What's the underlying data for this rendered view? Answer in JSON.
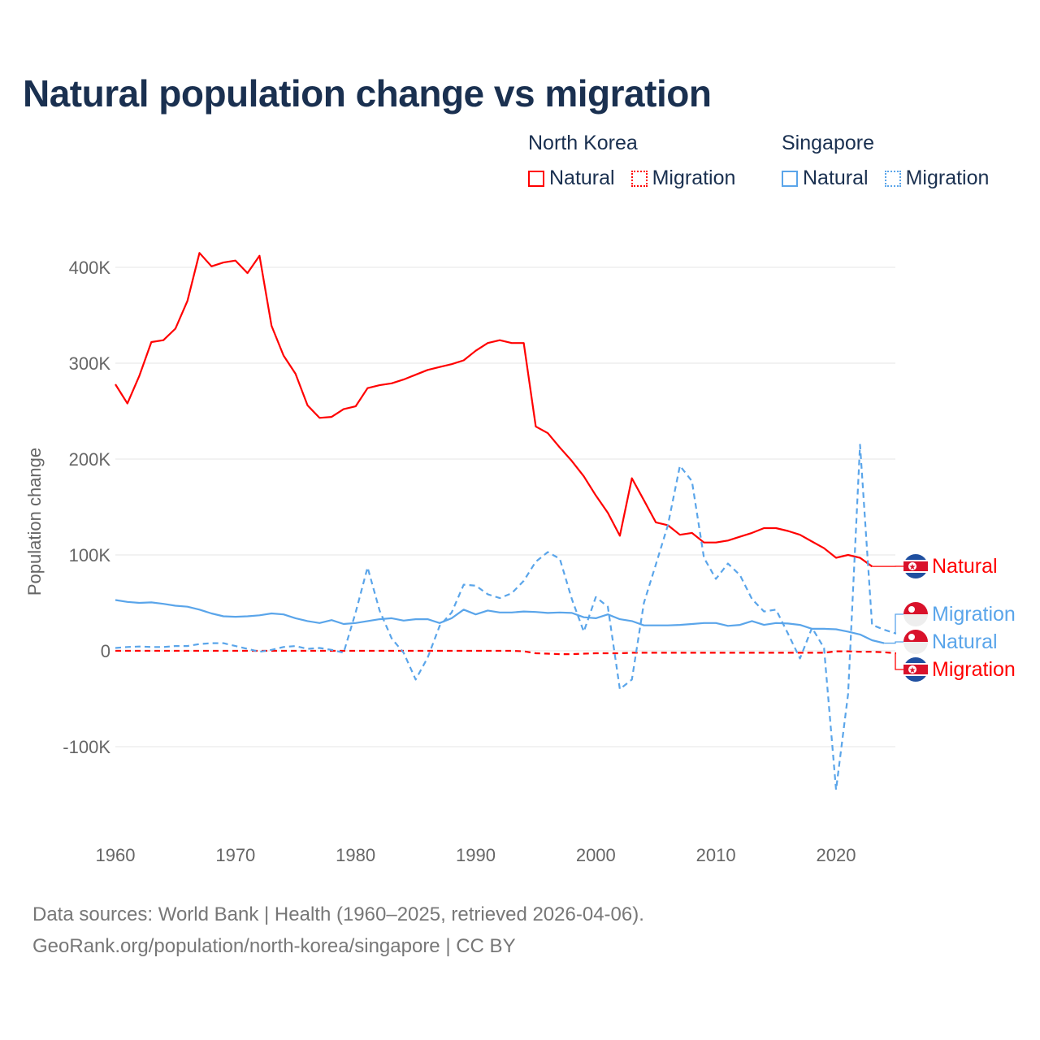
{
  "colors": {
    "north_korea": "#ff0000",
    "singapore": "#5aa5ea",
    "grid": "#e6e6e6",
    "title": "#1a3050",
    "axis_text": "#666666"
  },
  "chart_data": {
    "type": "line",
    "title": "Natural population change vs migration",
    "xlabel": "",
    "ylabel": "Population change",
    "xlim": [
      1960,
      2025
    ],
    "ylim": [
      -170000,
      430000
    ],
    "x_ticks": [
      1960,
      1970,
      1980,
      1990,
      2000,
      2010,
      2020
    ],
    "x_tick_labels": [
      "1960",
      "1970",
      "1980",
      "1990",
      "2000",
      "2010",
      "2020"
    ],
    "y_ticks": [
      -100000,
      0,
      100000,
      200000,
      300000,
      400000
    ],
    "y_tick_labels": [
      "-100K",
      "0",
      "100K",
      "200K",
      "300K",
      "400K"
    ],
    "grid": true,
    "legend_placement": "top-right",
    "legend_groups": [
      {
        "name": "North Korea",
        "items": [
          "Natural",
          "Migration"
        ]
      },
      {
        "name": "Singapore",
        "items": [
          "Natural",
          "Migration"
        ]
      }
    ],
    "series": [
      {
        "name": "Natural",
        "country": "North Korea",
        "color": "#ff0000",
        "style": "solid",
        "start_year": 1960,
        "values": [
          278000,
          258000,
          287000,
          322000,
          324000,
          336000,
          365000,
          415000,
          401000,
          405000,
          407000,
          394000,
          412000,
          339000,
          308000,
          289000,
          256000,
          243000,
          244000,
          252000,
          255000,
          274000,
          277000,
          279000,
          283000,
          288000,
          293000,
          296000,
          299000,
          303000,
          313000,
          321000,
          324000,
          321000,
          321000,
          234000,
          227000,
          212000,
          198000,
          182000,
          162000,
          144000,
          120000,
          180000,
          157000,
          134000,
          131000,
          121000,
          123000,
          113000,
          113000,
          115000,
          119000,
          123000,
          128000,
          128000,
          125000,
          121000,
          114000,
          107000,
          97000,
          100000,
          97000,
          88000
        ]
      },
      {
        "name": "Migration",
        "country": "North Korea",
        "color": "#ff0000",
        "style": "dashed",
        "start_year": 1960,
        "values": [
          0,
          0,
          0,
          0,
          0,
          0,
          0,
          0,
          0,
          0,
          0,
          0,
          0,
          0,
          0,
          0,
          0,
          0,
          0,
          0,
          0,
          0,
          0,
          0,
          0,
          0,
          0,
          0,
          0,
          0,
          0,
          0,
          0,
          0,
          -500,
          -2500,
          -3000,
          -3500,
          -3500,
          -3000,
          -2500,
          -2500,
          -2500,
          -2000,
          -2000,
          -2000,
          -2000,
          -2000,
          -2000,
          -2000,
          -2000,
          -2000,
          -2000,
          -2000,
          -2000,
          -2000,
          -2000,
          -2000,
          -2000,
          -2000,
          -500,
          -500,
          -1000,
          -1000,
          -1500,
          -2500
        ]
      },
      {
        "name": "Natural",
        "country": "Singapore",
        "color": "#5aa5ea",
        "style": "solid",
        "start_year": 1960,
        "values": [
          53000,
          51000,
          50000,
          50500,
          49000,
          47000,
          46000,
          43000,
          39000,
          36000,
          35500,
          36000,
          37000,
          39000,
          38000,
          34000,
          31000,
          29000,
          32000,
          28000,
          29000,
          31000,
          33000,
          34000,
          31500,
          33000,
          33000,
          29000,
          34000,
          43000,
          38000,
          42000,
          40000,
          40000,
          41000,
          40500,
          39500,
          40000,
          39500,
          35000,
          34000,
          38000,
          33000,
          31000,
          26500,
          26500,
          26500,
          27000,
          28000,
          29000,
          29000,
          26000,
          27000,
          31000,
          27000,
          29000,
          28500,
          27000,
          23000,
          23000,
          22500,
          20000,
          17000,
          11000,
          8000
        ]
      },
      {
        "name": "Migration",
        "country": "Singapore",
        "color": "#5aa5ea",
        "style": "dashed",
        "start_year": 1960,
        "values": [
          3000,
          4000,
          4500,
          4000,
          4000,
          5000,
          5000,
          7000,
          8000,
          8000,
          5000,
          2000,
          -1000,
          1000,
          4000,
          5000,
          2000,
          3000,
          1000,
          -2000,
          40000,
          87000,
          42000,
          13000,
          -2000,
          -30000,
          -7000,
          26000,
          40000,
          69000,
          68000,
          59000,
          55000,
          60000,
          73000,
          93000,
          103000,
          96000,
          54000,
          20000,
          56000,
          46000,
          -40000,
          -30000,
          50000,
          90000,
          131000,
          193000,
          177000,
          97000,
          75000,
          91000,
          79000,
          54000,
          41000,
          43000,
          18000,
          -8000,
          24000,
          3000,
          -145000,
          -45000,
          215000,
          27000,
          22000,
          18000
        ]
      }
    ],
    "end_labels": [
      {
        "text": "Natural",
        "country": "North Korea",
        "color": "#ff0000"
      },
      {
        "text": "Migration",
        "country": "Singapore",
        "color": "#5aa5ea"
      },
      {
        "text": "Natural",
        "country": "Singapore",
        "color": "#5aa5ea"
      },
      {
        "text": "Migration",
        "country": "North Korea",
        "color": "#ff0000"
      }
    ]
  },
  "legend": {
    "groups": [
      {
        "name": "North Korea",
        "natural": "Natural",
        "migration": "Migration"
      },
      {
        "name": "Singapore",
        "natural": "Natural",
        "migration": "Migration"
      }
    ]
  },
  "footer": {
    "line1": "Data sources: World Bank | Health (1960–2025, retrieved 2026-04-06).",
    "line2": "GeoRank.org/population/north-korea/singapore | CC BY"
  }
}
